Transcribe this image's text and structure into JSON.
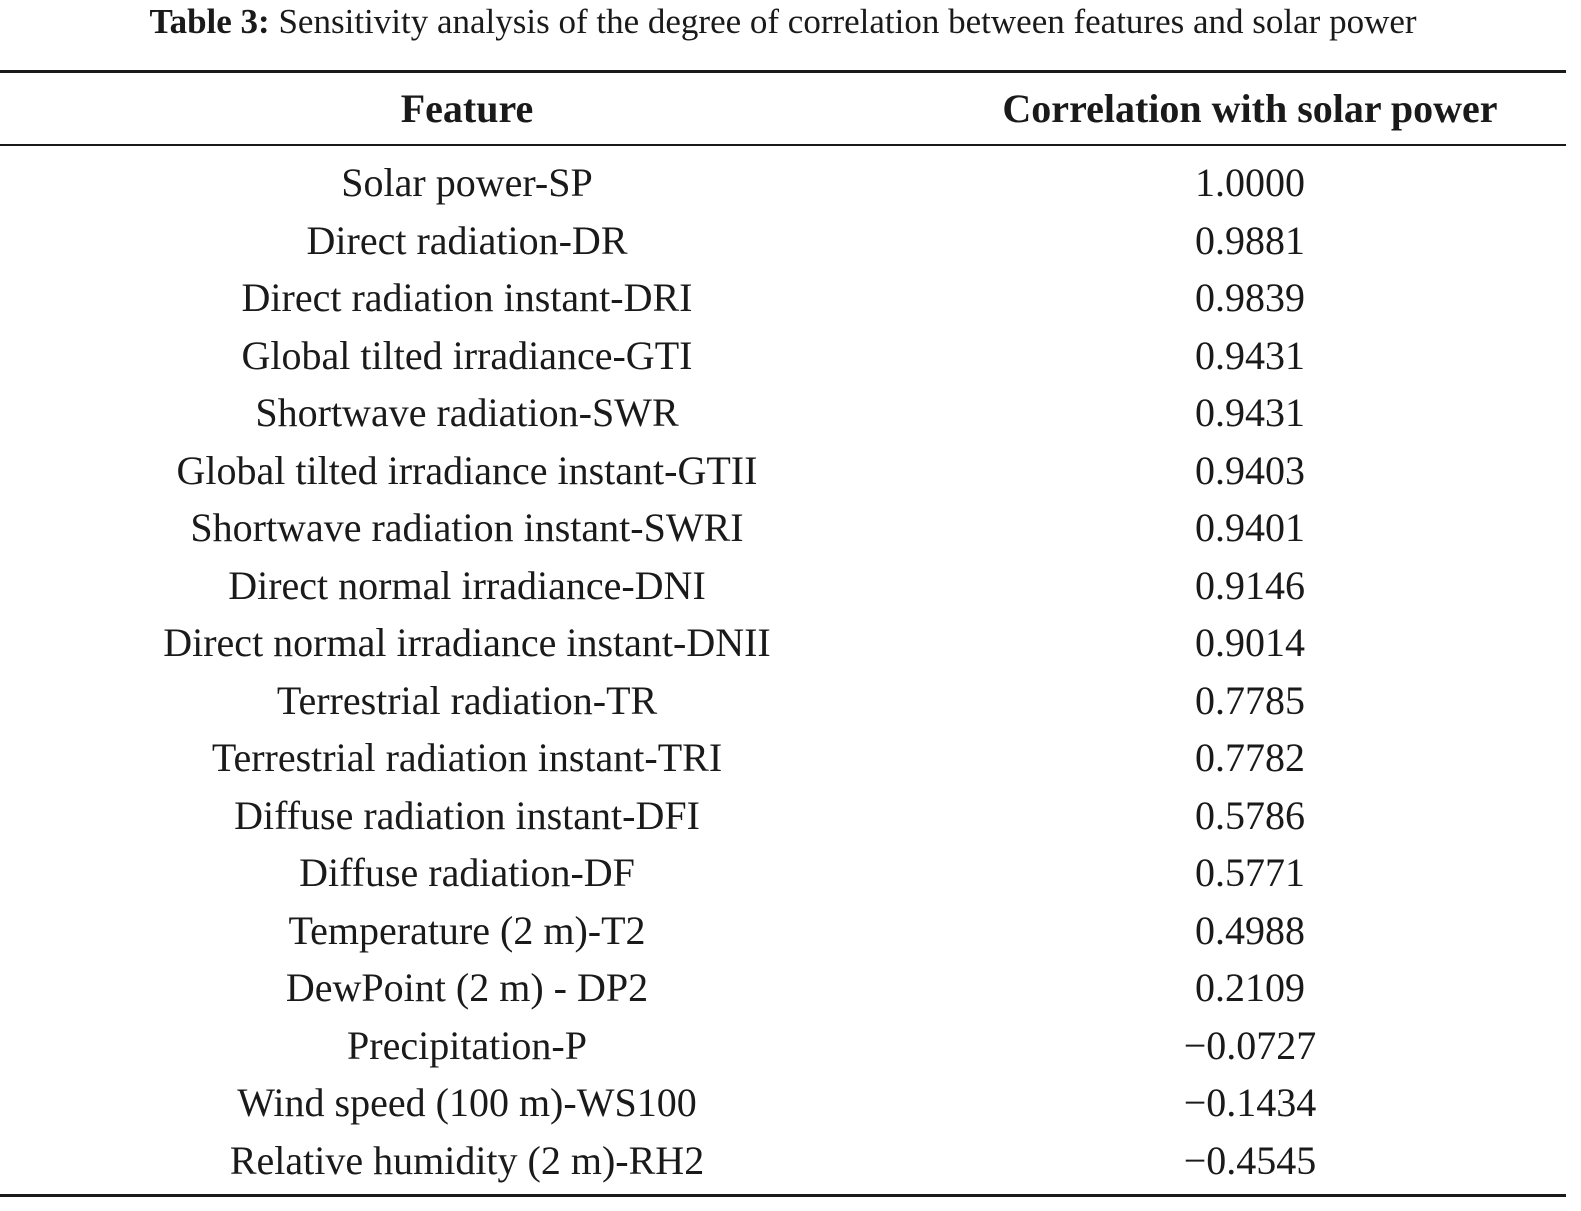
{
  "caption": {
    "label": "Table 3:",
    "text": " Sensitivity analysis of the degree of correlation between features and solar power"
  },
  "table": {
    "headers": [
      "Feature",
      "Correlation with solar power"
    ],
    "rows": [
      [
        "Solar power-SP",
        "1.0000"
      ],
      [
        "Direct radiation-DR",
        "0.9881"
      ],
      [
        "Direct radiation instant-DRI",
        "0.9839"
      ],
      [
        "Global tilted irradiance-GTI",
        "0.9431"
      ],
      [
        "Shortwave radiation-SWR",
        "0.9431"
      ],
      [
        "Global tilted irradiance instant-GTII",
        "0.9403"
      ],
      [
        "Shortwave radiation instant-SWRI",
        "0.9401"
      ],
      [
        "Direct normal irradiance-DNI",
        "0.9146"
      ],
      [
        "Direct normal irradiance instant-DNII",
        "0.9014"
      ],
      [
        "Terrestrial radiation-TR",
        "0.7785"
      ],
      [
        "Terrestrial radiation instant-TRI",
        "0.7782"
      ],
      [
        "Diffuse radiation instant-DFI",
        "0.5786"
      ],
      [
        "Diffuse radiation-DF",
        "0.5771"
      ],
      [
        "Temperature (2 m)-T2",
        "0.4988"
      ],
      [
        "DewPoint (2 m) - DP2",
        "0.2109"
      ],
      [
        "Precipitation-P",
        "−0.0727"
      ],
      [
        "Wind speed (100 m)-WS100",
        "−0.1434"
      ],
      [
        "Relative humidity (2 m)-RH2",
        "−0.4545"
      ]
    ]
  }
}
